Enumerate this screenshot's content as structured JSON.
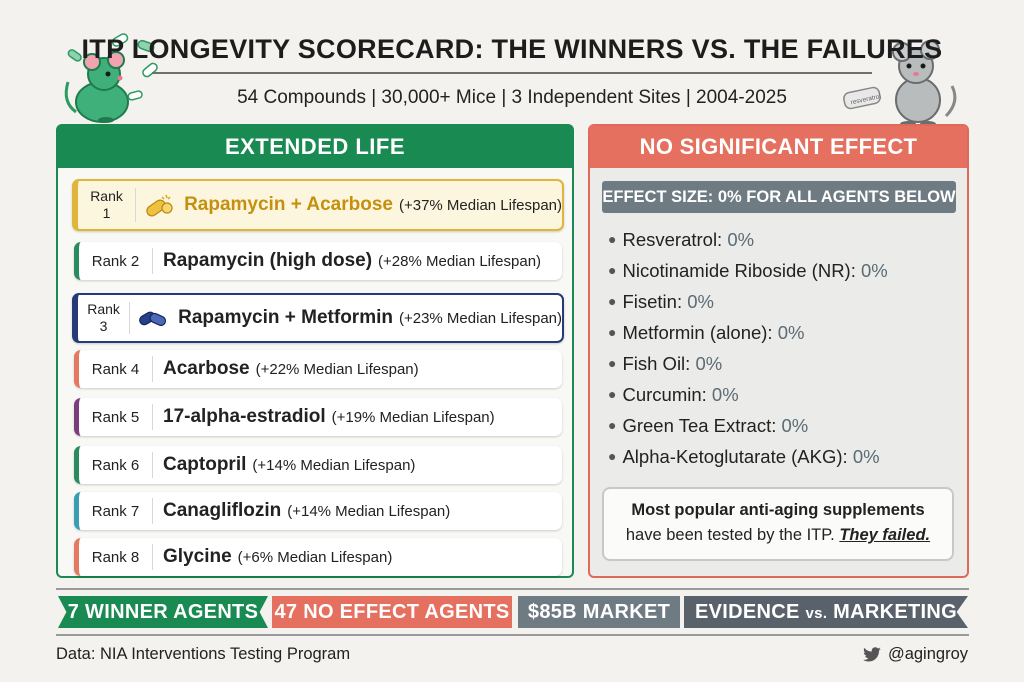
{
  "title": "ITP LONGEVITY SCORECARD: THE WINNERS VS. THE FAILURES",
  "subtitle": "54 Compounds | 30,000+ Mice | 3 Independent Sites | 2004-2025",
  "left": {
    "header": "EXTENDED LIFE",
    "ranks": [
      {
        "rank_word": "Rank",
        "rank_num": "1",
        "name": "Rapamycin + Acarbose",
        "effect": "(+37% Median Lifespan)"
      },
      {
        "rank": "Rank 2",
        "name": "Rapamycin (high dose)",
        "effect": "(+28% Median Lifespan)"
      },
      {
        "rank_word": "Rank",
        "rank_num": "3",
        "name": "Rapamycin + Metformin",
        "effect": "(+23% Median Lifespan)"
      },
      {
        "rank": "Rank 4",
        "name": "Acarbose",
        "effect": "(+22% Median Lifespan)"
      },
      {
        "rank": "Rank 5",
        "name": "17-alpha-estradiol",
        "effect": "(+19% Median Lifespan)"
      },
      {
        "rank": "Rank 6",
        "name": "Captopril",
        "effect": "(+14% Median Lifespan)"
      },
      {
        "rank": "Rank 7",
        "name": "Canagliflozin",
        "effect": "(+14% Median Lifespan)"
      },
      {
        "rank": "Rank 8",
        "name": "Glycine",
        "effect": "(+6% Median Lifespan)"
      }
    ]
  },
  "right": {
    "header": "NO SIGNIFICANT EFFECT",
    "effect_size": "EFFECT SIZE: 0% FOR ALL AGENTS BELOW",
    "items": [
      {
        "name": "Resveratrol:",
        "pct": "0%"
      },
      {
        "name": "Nicotinamide Riboside (NR):",
        "pct": "0%"
      },
      {
        "name": "Fisetin:",
        "pct": "0%"
      },
      {
        "name": "Metformin (alone):",
        "pct": "0%"
      },
      {
        "name": "Fish Oil:",
        "pct": "0%"
      },
      {
        "name": "Curcumin:",
        "pct": "0%"
      },
      {
        "name": "Green Tea Extract:",
        "pct": "0%"
      },
      {
        "name": "Alpha-Ketoglutarate (AKG):",
        "pct": "0%"
      }
    ],
    "callout_line1": "Most popular anti-aging supplements",
    "callout_line2": "have been tested by the ITP.",
    "callout_failed": "They failed."
  },
  "band": {
    "winners": "7 WINNER AGENTS",
    "no_effect": "47 NO EFFECT AGENTS",
    "market": "$85B MARKET",
    "evidence": "EVIDENCE",
    "vs": "vs.",
    "marketing": "MARKETING"
  },
  "footer": {
    "source": "Data: NIA Interventions Testing Program",
    "handle": "@agingroy"
  },
  "bottle_label": "resveratrol",
  "colors": {
    "green": "#198a52",
    "coral": "#e5705f",
    "slate": "#6f7b83",
    "gold": "#e0b53a",
    "navy": "#263a78"
  }
}
